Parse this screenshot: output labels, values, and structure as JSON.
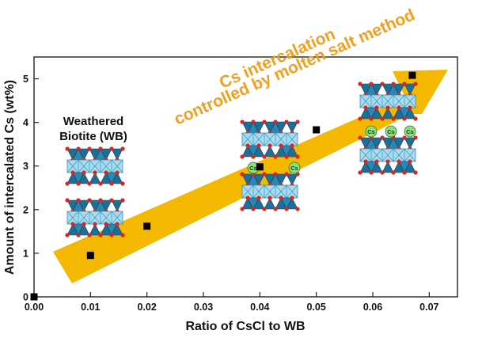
{
  "chart_data": {
    "type": "scatter",
    "x": [
      0.0,
      0.01,
      0.02,
      0.04,
      0.05,
      0.067
    ],
    "y": [
      0.0,
      0.95,
      1.62,
      2.98,
      3.83,
      5.08
    ],
    "xlabel": "Ratio of CsCl to WB",
    "ylabel": "Amount of intercalated Cs (wt%)",
    "xlim": [
      0.0,
      0.075
    ],
    "ylim": [
      0.0,
      5.5
    ],
    "xticks": [
      "0.00",
      "0.01",
      "0.02",
      "0.03",
      "0.04",
      "0.05",
      "0.06",
      "0.07"
    ],
    "yticks": [
      "0",
      "1",
      "2",
      "3",
      "4",
      "5"
    ],
    "grid": false,
    "marker_color": "#000000",
    "annotations": {
      "arrow_text_line1": "Cs intercalation",
      "arrow_text_line2": "controlled by molten salt method",
      "wb_line1": "Weathered",
      "wb_line2": "Biotite (WB)",
      "cs_label": "Cs"
    },
    "colors": {
      "arrow": "#f5b800",
      "annotation_text": "#f0a020",
      "tetrahedron": "#1f6e96",
      "octahedron": "#a7dcf0",
      "oxygen": "#e0231f",
      "cs_ball": "#8fe07a"
    }
  }
}
